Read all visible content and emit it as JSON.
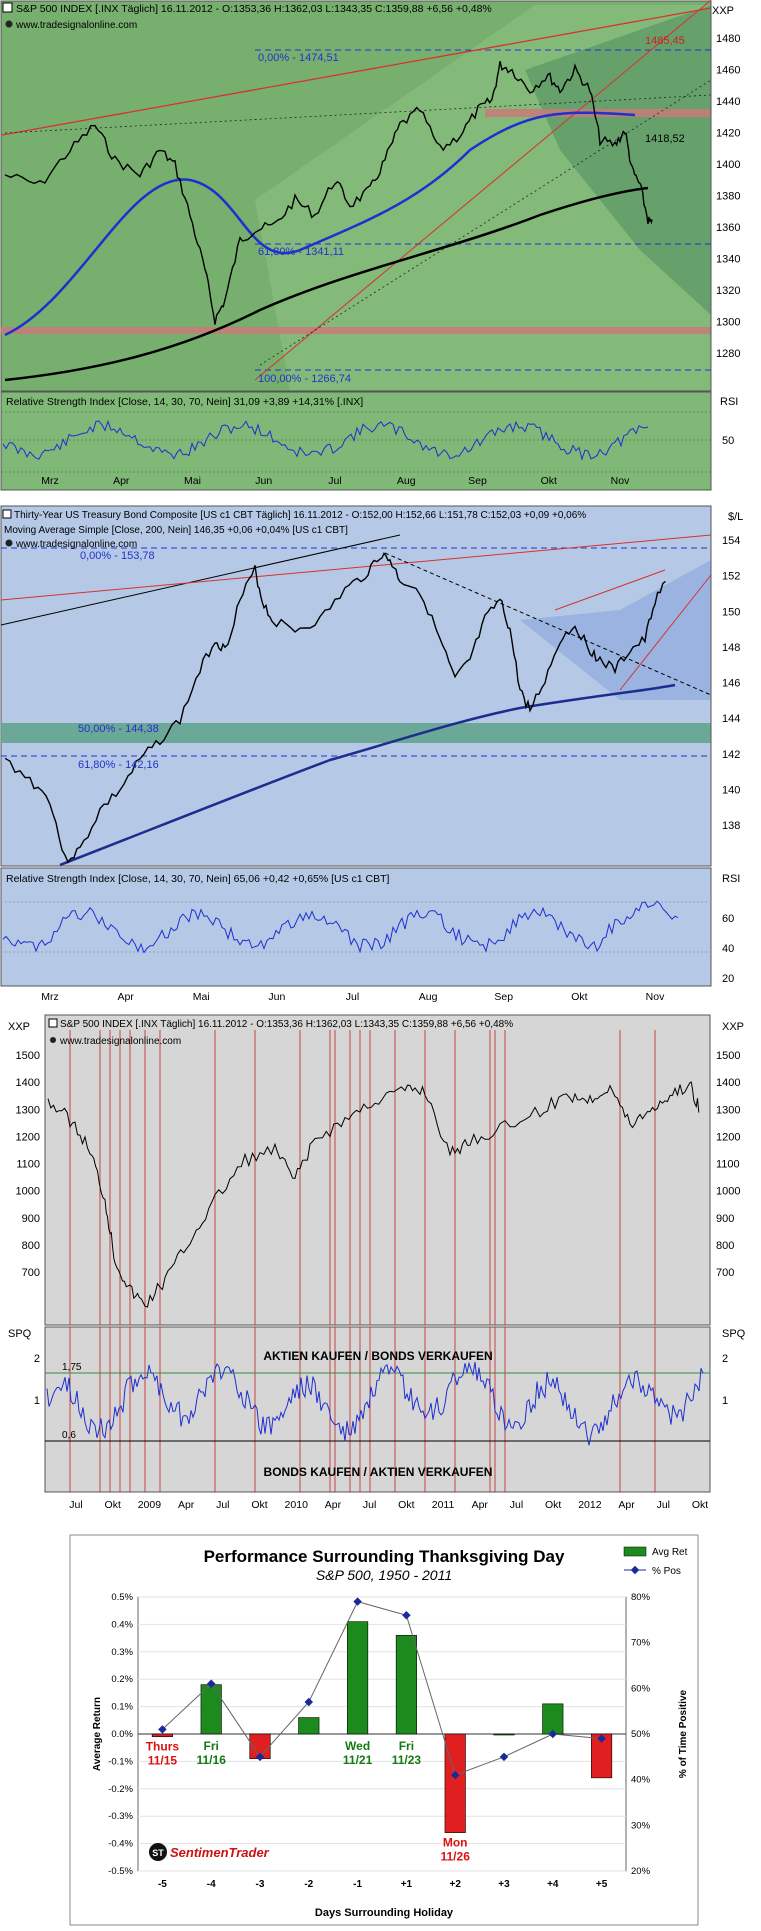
{
  "colors": {
    "panel1_bg": "#77b06e",
    "panel1_rsi_bg": "#80b877",
    "panel2_bg": "#b5c9e6",
    "panel3_bg": "#d6d6d6",
    "price_line": "#000000",
    "ma_blue": "#1f2fd0",
    "trend_red": "#d8312f",
    "fib_blue": "#2233cc",
    "support_band": "#c97979",
    "band_green": "#5ea28a",
    "event_line": "#c02020",
    "bar_green": "#1c8a1c",
    "bar_red": "#e02020",
    "pos_line": "#1a2a9a"
  },
  "panel1": {
    "title": "S&P 500 INDEX [.INX  Täglich] 16.11.2012 - O:1353,36 H:1362,03 L:1343,35 C:1359,88 +6,56 +0,48%",
    "source": "www.tradesignalonline.com",
    "axis_unit": "XXP",
    "y_ticks": [
      "1480",
      "1460",
      "1440",
      "1420",
      "1400",
      "1380",
      "1360",
      "1340",
      "1320",
      "1300",
      "1280"
    ],
    "fib_top": "0,00% - 1474,51",
    "fib_mid": "61,80% - 1341,11",
    "fib_bot": "100,00% - 1266,74",
    "level_1485": "1485,45",
    "level_1418": "1418,52",
    "rsi_title": "Relative Strength Index [Close, 14, 30, 70, Nein] 31,09 +3,89 +14,31% [.INX]",
    "rsi_label": "RSI",
    "rsi_tick": "50",
    "months": [
      "Mrz",
      "Apr",
      "Mai",
      "Jun",
      "Jul",
      "Aug",
      "Sep",
      "Okt",
      "Nov"
    ]
  },
  "panel2": {
    "title": "Thirty-Year US Treasury Bond Composite [US c1 CBT  Täglich] 16.11.2012 - O:152,00 H:152,66 L:151,78 C:152,03 +0,09 +0,06%",
    "ma_title": "Moving Average Simple [Close, 200, Nein] 146,35 +0,06 +0,04% [US c1 CBT]",
    "source": "www.tradesignalonline.com",
    "axis_unit": "$/L",
    "y_ticks": [
      "154",
      "152",
      "150",
      "148",
      "146",
      "144",
      "142",
      "140",
      "138"
    ],
    "fib_top": "0,00% - 153,78",
    "fib_50": "50,00% - 144,38",
    "fib_618": "61,80% - 142,16",
    "rsi_title": "Relative Strength Index [Close, 14, 30, 70, Nein] 65,06 +0,42 +0,65% [US c1 CBT]",
    "rsi_label": "RSI",
    "rsi_ticks": [
      "60",
      "40",
      "20"
    ],
    "months": [
      "Mrz",
      "Apr",
      "Mai",
      "Jun",
      "Jul",
      "Aug",
      "Sep",
      "Okt",
      "Nov"
    ]
  },
  "panel3": {
    "title": "S&P 500 INDEX [.INX  Täglich] 16.11.2012 - O:1353,36 H:1362,03 L:1343,35 C:1359,88 +6,56 +0,48%",
    "source": "www.tradesignalonline.com",
    "axis_unit": "XXP",
    "y_ticks": [
      "1500",
      "1400",
      "1300",
      "1200",
      "1100",
      "1000",
      "900",
      "800",
      "700"
    ],
    "spq_label": "SPQ",
    "spq_ticks": [
      "2",
      "1"
    ],
    "level_175": "1,75",
    "level_06": "0,6",
    "buy_text": "AKTIEN KAUFEN / BONDS VERKAUFEN",
    "sell_text": "BONDS KAUFEN / AKTIEN VERKAUFEN",
    "x_labels": [
      "Jul",
      "Okt",
      "2009",
      "Apr",
      "Jul",
      "Okt",
      "2010",
      "Apr",
      "Jul",
      "Okt",
      "2011",
      "Apr",
      "Jul",
      "Okt",
      "2012",
      "Apr",
      "Jul",
      "Okt"
    ]
  },
  "chart_data": [
    {
      "type": "bar",
      "title": "Performance Surrounding Thanksgiving Day",
      "subtitle": "S&P 500, 1950 - 2011",
      "xlabel": "Days Surrounding Holiday",
      "ylabel": "Average Return",
      "y2label": "% of Time Positive",
      "categories": [
        "-5",
        "-4",
        "-3",
        "-2",
        "-1",
        "+1",
        "+2",
        "+3",
        "+4",
        "+5"
      ],
      "series": [
        {
          "name": "Avg Ret",
          "values": [
            -0.01,
            0.18,
            -0.09,
            0.06,
            0.41,
            0.36,
            -0.36,
            0.0,
            0.11,
            -0.16
          ]
        },
        {
          "name": "% Pos",
          "values": [
            51,
            61,
            45,
            57,
            79,
            76,
            41,
            45,
            50,
            49
          ]
        }
      ],
      "ylim": [
        -0.5,
        0.5
      ],
      "y_ticks": [
        "0.5%",
        "0.4%",
        "0.3%",
        "0.2%",
        "0.1%",
        "0.0%",
        "-0.1%",
        "-0.2%",
        "-0.3%",
        "-0.4%",
        "-0.5%"
      ],
      "y2lim": [
        20,
        80
      ],
      "y2_ticks": [
        "80%",
        "70%",
        "60%",
        "50%",
        "40%",
        "30%",
        "20%"
      ],
      "bar_labels": [
        {
          "text": "Thurs\n11/15",
          "color": "red"
        },
        {
          "text": "Fri\n11/16",
          "color": "green"
        },
        {
          "text": "",
          "color": ""
        },
        {
          "text": "",
          "color": ""
        },
        {
          "text": "Wed\n11/21",
          "color": "green"
        },
        {
          "text": "Fri\n11/23",
          "color": "green"
        },
        {
          "text": "Mon\n11/26",
          "color": "red"
        },
        {
          "text": "",
          "color": ""
        },
        {
          "text": "",
          "color": ""
        },
        {
          "text": "",
          "color": ""
        }
      ],
      "brand": "SentimenTrader",
      "legend_position": "top-right"
    }
  ]
}
